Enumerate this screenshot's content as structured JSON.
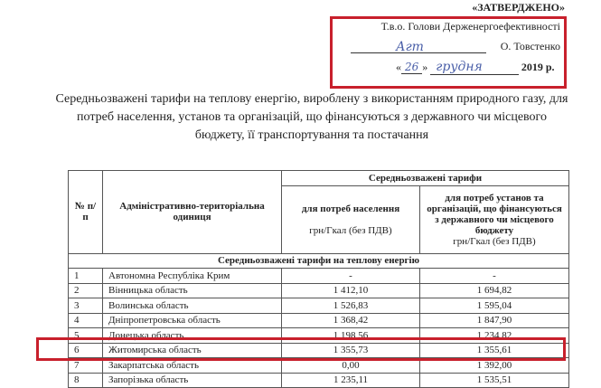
{
  "approval": {
    "heading": "«ЗАТВЕРДЖЕНО»",
    "position": "Т.в.о. Голови Держенергоефективності",
    "name": "О. Товстенко",
    "day": "26",
    "month": "грудня",
    "year": "2019 р.",
    "signature": "Агт"
  },
  "title": "Середньозважені тарифи на теплову енергію, вироблену з використанням природного газу, для потреб населення, установ та організацій, що фінансуються з державного чи місцевого бюджету, її транспортування та постачання",
  "table": {
    "col_num": "№ п/п",
    "col_unit": "Адміністративно-територіальна одиниця",
    "col_group": "Середньозважені тарифи",
    "col_pop": "для потреб населення",
    "col_pop_unit": "грн/Гкал (без ПДВ)",
    "col_org": "для потреб установ та організацій, що фінансуються з державного чи місцевого бюджету",
    "col_org_unit": "грн/Гкал (без ПДВ)",
    "section": "Середньозважені тарифи на теплову енергію",
    "rows": [
      {
        "n": "1",
        "name": "Автономна Республіка Крим",
        "pop": "-",
        "org": "-"
      },
      {
        "n": "2",
        "name": "Вінницька область",
        "pop": "1 412,10",
        "org": "1 694,82"
      },
      {
        "n": "3",
        "name": "Волинська область",
        "pop": "1 526,83",
        "org": "1 595,04"
      },
      {
        "n": "4",
        "name": "Дніпропетровська область",
        "pop": "1 368,42",
        "org": "1 847,90"
      },
      {
        "n": "5",
        "name": "Донецька область",
        "pop": "1 198,56",
        "org": "1 234,82"
      },
      {
        "n": "6",
        "name": "Житомирська область",
        "pop": "1 355,73",
        "org": "1 355,61"
      },
      {
        "n": "7",
        "name": "Закарпатська область",
        "pop": "0,00",
        "org": "1 392,00"
      },
      {
        "n": "8",
        "name": "Запорізька область",
        "pop": "1 235,11",
        "org": "1 535,51"
      }
    ]
  },
  "highlight_color": "#c8202c"
}
